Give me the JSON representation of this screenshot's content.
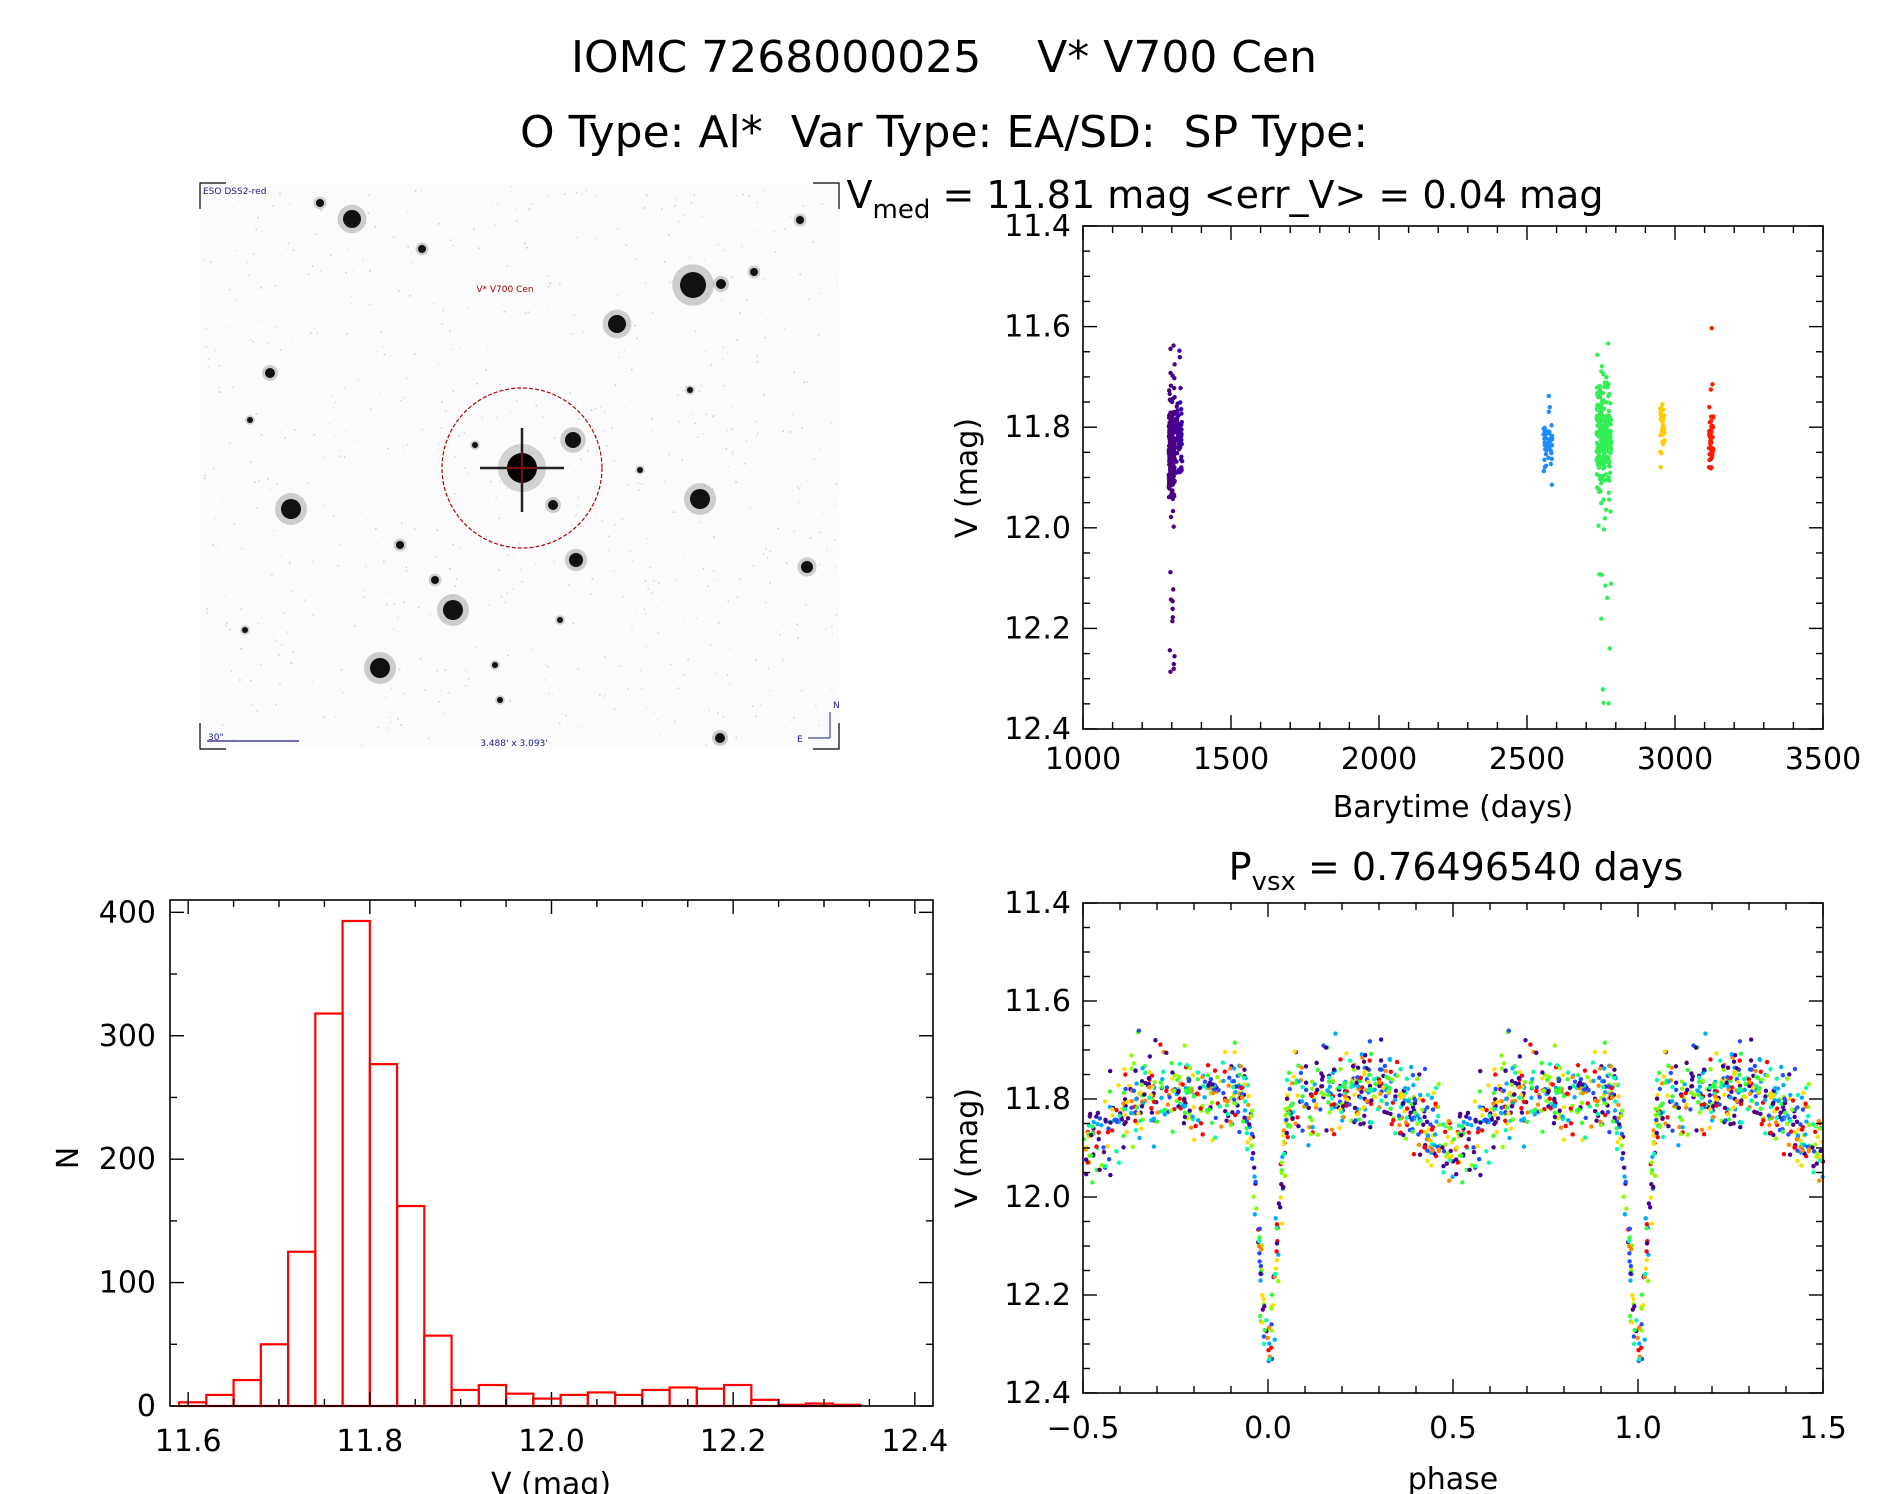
{
  "header": {
    "title_line1": "IOMC 7268000025    V* V700 Cen",
    "title_line2": "O Type: Al*  Var Type: EA/SD:  SP Type:"
  },
  "finder_image": {
    "label_survey": "ESO DSS2-red",
    "label_target": "V* V700 Cen",
    "label_scale": "30\"",
    "label_fov": "3.488' x 3.093'",
    "label_north": "N",
    "label_east": "E"
  },
  "colors": {
    "hist": "#ff0000",
    "palette": [
      "#4b0082",
      "#3f00a0",
      "#1e50ff",
      "#00aaff",
      "#00ffaa",
      "#33ff33",
      "#88ff00",
      "#ffdd00",
      "#ff8800",
      "#ff0000"
    ]
  },
  "chart_data": [
    {
      "type": "scatter",
      "name": "lightcurve",
      "title_prefix": "V",
      "title_sub": "med",
      "title_rest": " = 11.81 mag <err_V> = 0.04 mag",
      "xlabel": "Barytime (days)",
      "ylabel": "V (mag)",
      "xlim": [
        1000,
        3500
      ],
      "ylim": [
        12.4,
        11.4
      ],
      "y_inverted": true,
      "xticks": [
        1000,
        1500,
        2000,
        2500,
        3000,
        3500
      ],
      "yticks": [
        "11.4",
        "11.6",
        "11.8",
        "12.0",
        "12.2",
        "12.4"
      ],
      "clusters": [
        {
          "x_range": [
            1290,
            1310
          ],
          "y_center": 11.84,
          "y_spread": 0.05,
          "y_min": 11.63,
          "y_max": 12.31,
          "color": "#4b0082",
          "n": 260
        },
        {
          "x_range": [
            1315,
            1335
          ],
          "y_center": 11.82,
          "y_spread": 0.04,
          "y_min": 11.6,
          "y_max": 11.89,
          "color": "#3f00a0",
          "n": 60
        },
        {
          "x_range": [
            2555,
            2585
          ],
          "y_center": 11.83,
          "y_spread": 0.03,
          "y_min": 11.7,
          "y_max": 11.92,
          "color": "#1e8cff",
          "n": 45
        },
        {
          "x_range": [
            2735,
            2785
          ],
          "y_center": 11.82,
          "y_spread": 0.05,
          "y_min": 11.62,
          "y_max": 12.37,
          "color": "#33ee55",
          "n": 260
        },
        {
          "x_range": [
            2950,
            2965
          ],
          "y_center": 11.8,
          "y_spread": 0.03,
          "y_min": 11.66,
          "y_max": 11.88,
          "color": "#ffcc00",
          "n": 30
        },
        {
          "x_range": [
            3115,
            3130
          ],
          "y_center": 11.82,
          "y_spread": 0.03,
          "y_min": 11.59,
          "y_max": 11.89,
          "color": "#ff1a00",
          "n": 55
        }
      ]
    },
    {
      "type": "bar",
      "name": "histogram",
      "xlabel": "V (mag)",
      "ylabel": "N",
      "xlim": [
        11.58,
        12.42
      ],
      "ylim": [
        0,
        410
      ],
      "xticks": [
        "11.6",
        "11.8",
        "12.0",
        "12.2",
        "12.4"
      ],
      "yticks": [
        0,
        100,
        200,
        300,
        400
      ],
      "bin_start": 11.59,
      "bin_width": 0.03,
      "values": [
        3,
        9,
        21,
        50,
        125,
        318,
        393,
        277,
        162,
        57,
        13,
        17,
        10,
        6,
        9,
        11,
        9,
        13,
        15,
        14,
        17,
        5,
        1,
        2,
        1,
        0
      ]
    },
    {
      "type": "scatter",
      "name": "phased",
      "title_prefix": "P",
      "title_sub": "vsx",
      "title_rest": " = 0.76496540 days",
      "xlabel": "phase",
      "ylabel": "V (mag)",
      "xlim": [
        -0.5,
        1.5
      ],
      "ylim": [
        12.4,
        11.4
      ],
      "y_inverted": true,
      "xticks": [
        "−0.5",
        "0.0",
        "0.5",
        "1.0",
        "1.5"
      ],
      "yticks": [
        "11.4",
        "11.6",
        "11.8",
        "12.0",
        "12.2",
        "12.4"
      ],
      "period_days": 0.7649654,
      "primary_min_mag": 12.3,
      "max_mag": 11.78,
      "secondary_min_mag": 11.86,
      "n_points": 900
    }
  ]
}
